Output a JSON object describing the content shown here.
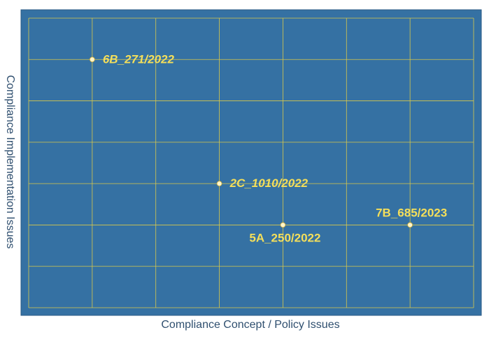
{
  "chart_data": {
    "type": "scatter",
    "title": "",
    "xlabel": "Compliance Concept / Policy Issues",
    "ylabel": "Compliance Implementation Issues",
    "xlim": [
      0,
      7
    ],
    "ylim": [
      0,
      7
    ],
    "grid": true,
    "background_color": "#3571a3",
    "grid_color": "#d8c84a",
    "point_color": "#fff6cc",
    "label_color": "#f5df5a",
    "points": [
      {
        "label": "6B_271/2022",
        "x": 1,
        "y": 6,
        "label_position": "right",
        "italic": true
      },
      {
        "label": "2C_1010/2022",
        "x": 3,
        "y": 3,
        "label_position": "right",
        "italic": true
      },
      {
        "label": "5A_250/2022",
        "x": 4,
        "y": 2,
        "label_position": "below",
        "italic": false
      },
      {
        "label": "7B_685/2023",
        "x": 6,
        "y": 2,
        "label_position": "above",
        "italic": false
      }
    ]
  }
}
